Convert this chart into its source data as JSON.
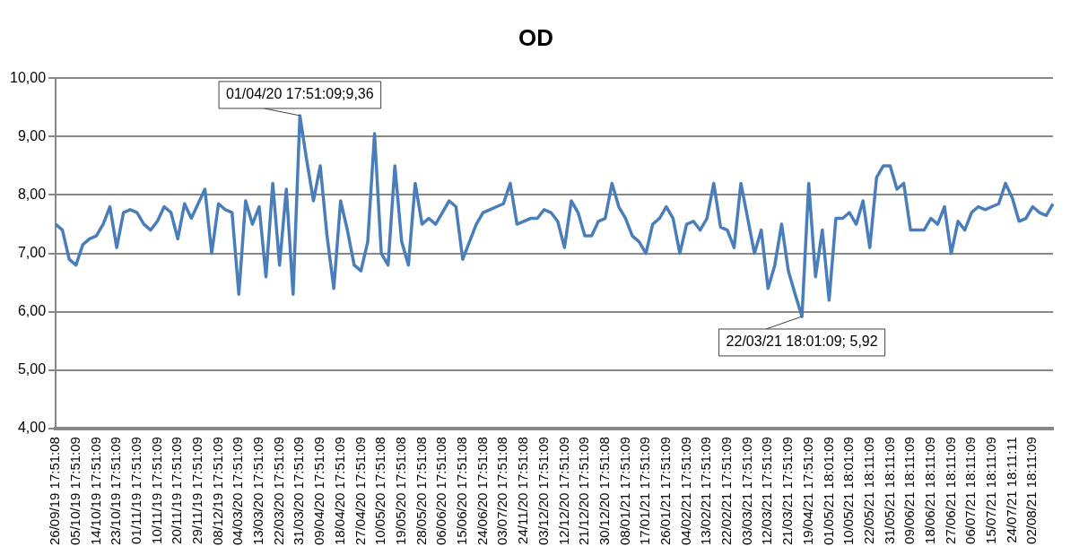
{
  "chart_data": {
    "type": "line",
    "title": "OD",
    "categories": [
      "26/09/19 17:51:08",
      null,
      null,
      "05/10/19 17:51:09",
      null,
      null,
      "14/10/19 17:51:09",
      null,
      null,
      "23/10/19 17:51:09",
      null,
      null,
      "01/11/19 17:51:09",
      null,
      null,
      "10/11/19 17:51:09",
      null,
      null,
      "20/11/19 17:51:09",
      null,
      null,
      "29/11/19 17:51:09",
      null,
      null,
      "08/12/19 17:51:09",
      null,
      null,
      "04/03/20 17:51:09",
      null,
      null,
      "13/03/20 17:51:09",
      null,
      null,
      "22/03/20 17:51:09",
      null,
      null,
      "31/03/20 17:51:09",
      null,
      null,
      "09/04/20 17:51:09",
      null,
      null,
      "18/04/20 17:51:09",
      null,
      null,
      "27/04/20 17:51:09",
      null,
      null,
      "10/05/20 17:51:08",
      null,
      null,
      "19/05/20 17:51:08",
      null,
      null,
      "28/05/20 17:51:08",
      null,
      null,
      "06/06/20 17:51:08",
      null,
      null,
      "15/06/20 17:51:08",
      null,
      null,
      "24/06/20 17:51:08",
      null,
      null,
      "03/07/20 17:51:08",
      null,
      null,
      "24/11/20 17:51:08",
      null,
      null,
      "03/12/20 17:51:09",
      null,
      null,
      "12/12/20 17:51:09",
      null,
      null,
      "21/12/20 17:51:09",
      null,
      null,
      "30/12/20 17:51:08",
      null,
      null,
      "08/01/21 17:51:09",
      null,
      null,
      "17/01/21 17:51:09",
      null,
      null,
      "26/01/21 17:51:09",
      null,
      null,
      "04/02/21 17:51:09",
      null,
      null,
      "13/02/21 17:51:09",
      null,
      null,
      "22/02/21 17:51:09",
      null,
      null,
      "03/03/21 17:51:09",
      null,
      null,
      "12/03/21 17:51:09",
      null,
      null,
      "21/03/21 17:51:09",
      null,
      null,
      "19/04/21 17:51:09",
      null,
      null,
      "01/05/21 18:01:09",
      null,
      null,
      "10/05/21 18:01:09",
      null,
      null,
      "22/05/21 18:11:09",
      null,
      null,
      "31/05/21 18:11:09",
      null,
      null,
      "09/06/21 18:11:09",
      null,
      null,
      "18/06/21 18:11:09",
      null,
      null,
      "27/06/21 18:11:09",
      null,
      null,
      "06/07/21 18:11:09",
      null,
      null,
      "15/07/21 18:11:09",
      null,
      null,
      "24/07/21 18:11:11",
      null,
      null,
      "02/08/21 18:11:09",
      null,
      null,
      null
    ],
    "series": [
      {
        "color": "#4a7ebb",
        "values": [
          7.5,
          7.4,
          6.9,
          6.8,
          7.15,
          7.25,
          7.3,
          7.5,
          7.8,
          7.1,
          7.7,
          7.75,
          7.7,
          7.5,
          7.4,
          7.55,
          7.8,
          7.7,
          7.25,
          7.85,
          7.6,
          7.85,
          8.1,
          7.0,
          7.85,
          7.75,
          7.7,
          6.3,
          7.9,
          7.5,
          7.8,
          6.6,
          8.2,
          6.8,
          8.1,
          6.3,
          9.36,
          8.6,
          7.9,
          8.5,
          7.3,
          6.4,
          7.9,
          7.4,
          6.8,
          6.7,
          7.2,
          9.05,
          7.0,
          6.8,
          8.5,
          7.2,
          6.8,
          8.2,
          7.5,
          7.6,
          7.5,
          7.7,
          7.9,
          7.8,
          6.9,
          7.2,
          7.5,
          7.7,
          7.75,
          7.8,
          7.85,
          8.2,
          7.5,
          7.55,
          7.6,
          7.6,
          7.75,
          7.7,
          7.55,
          7.1,
          7.9,
          7.7,
          7.3,
          7.3,
          7.55,
          7.6,
          8.2,
          7.8,
          7.6,
          7.3,
          7.2,
          7.0,
          7.5,
          7.6,
          7.8,
          7.6,
          7.0,
          7.5,
          7.55,
          7.4,
          7.6,
          8.2,
          7.45,
          7.4,
          7.1,
          8.2,
          7.6,
          7.0,
          7.4,
          6.4,
          6.8,
          7.5,
          6.7,
          6.3,
          5.92,
          8.2,
          6.6,
          7.4,
          6.2,
          7.6,
          7.6,
          7.7,
          7.5,
          7.9,
          7.1,
          8.3,
          8.5,
          8.5,
          8.1,
          8.2,
          7.4,
          7.4,
          7.4,
          7.6,
          7.5,
          7.8,
          7.0,
          7.55,
          7.4,
          7.7,
          7.8,
          7.75,
          7.8,
          7.85,
          8.2,
          7.95,
          7.55,
          7.6,
          7.8,
          7.7,
          7.65,
          7.85
        ]
      }
    ],
    "ylim": [
      4,
      10
    ],
    "yticks": [
      {
        "value": 4,
        "label": "4,00"
      },
      {
        "value": 5,
        "label": "5,00"
      },
      {
        "value": 6,
        "label": "6,00"
      },
      {
        "value": 7,
        "label": "7,00"
      },
      {
        "value": 8,
        "label": "8,00"
      },
      {
        "value": 9,
        "label": "9,00"
      },
      {
        "value": 10,
        "label": "10,00"
      }
    ],
    "grid": "y",
    "legend": false,
    "marker": "none",
    "line_style": "solid",
    "annotations": [
      {
        "text": "01/04/20 17:51:09;9,36",
        "y": 9.36
      },
      {
        "text": "22/03/21 18:01:09; 5,92",
        "y": 5.92
      }
    ]
  }
}
